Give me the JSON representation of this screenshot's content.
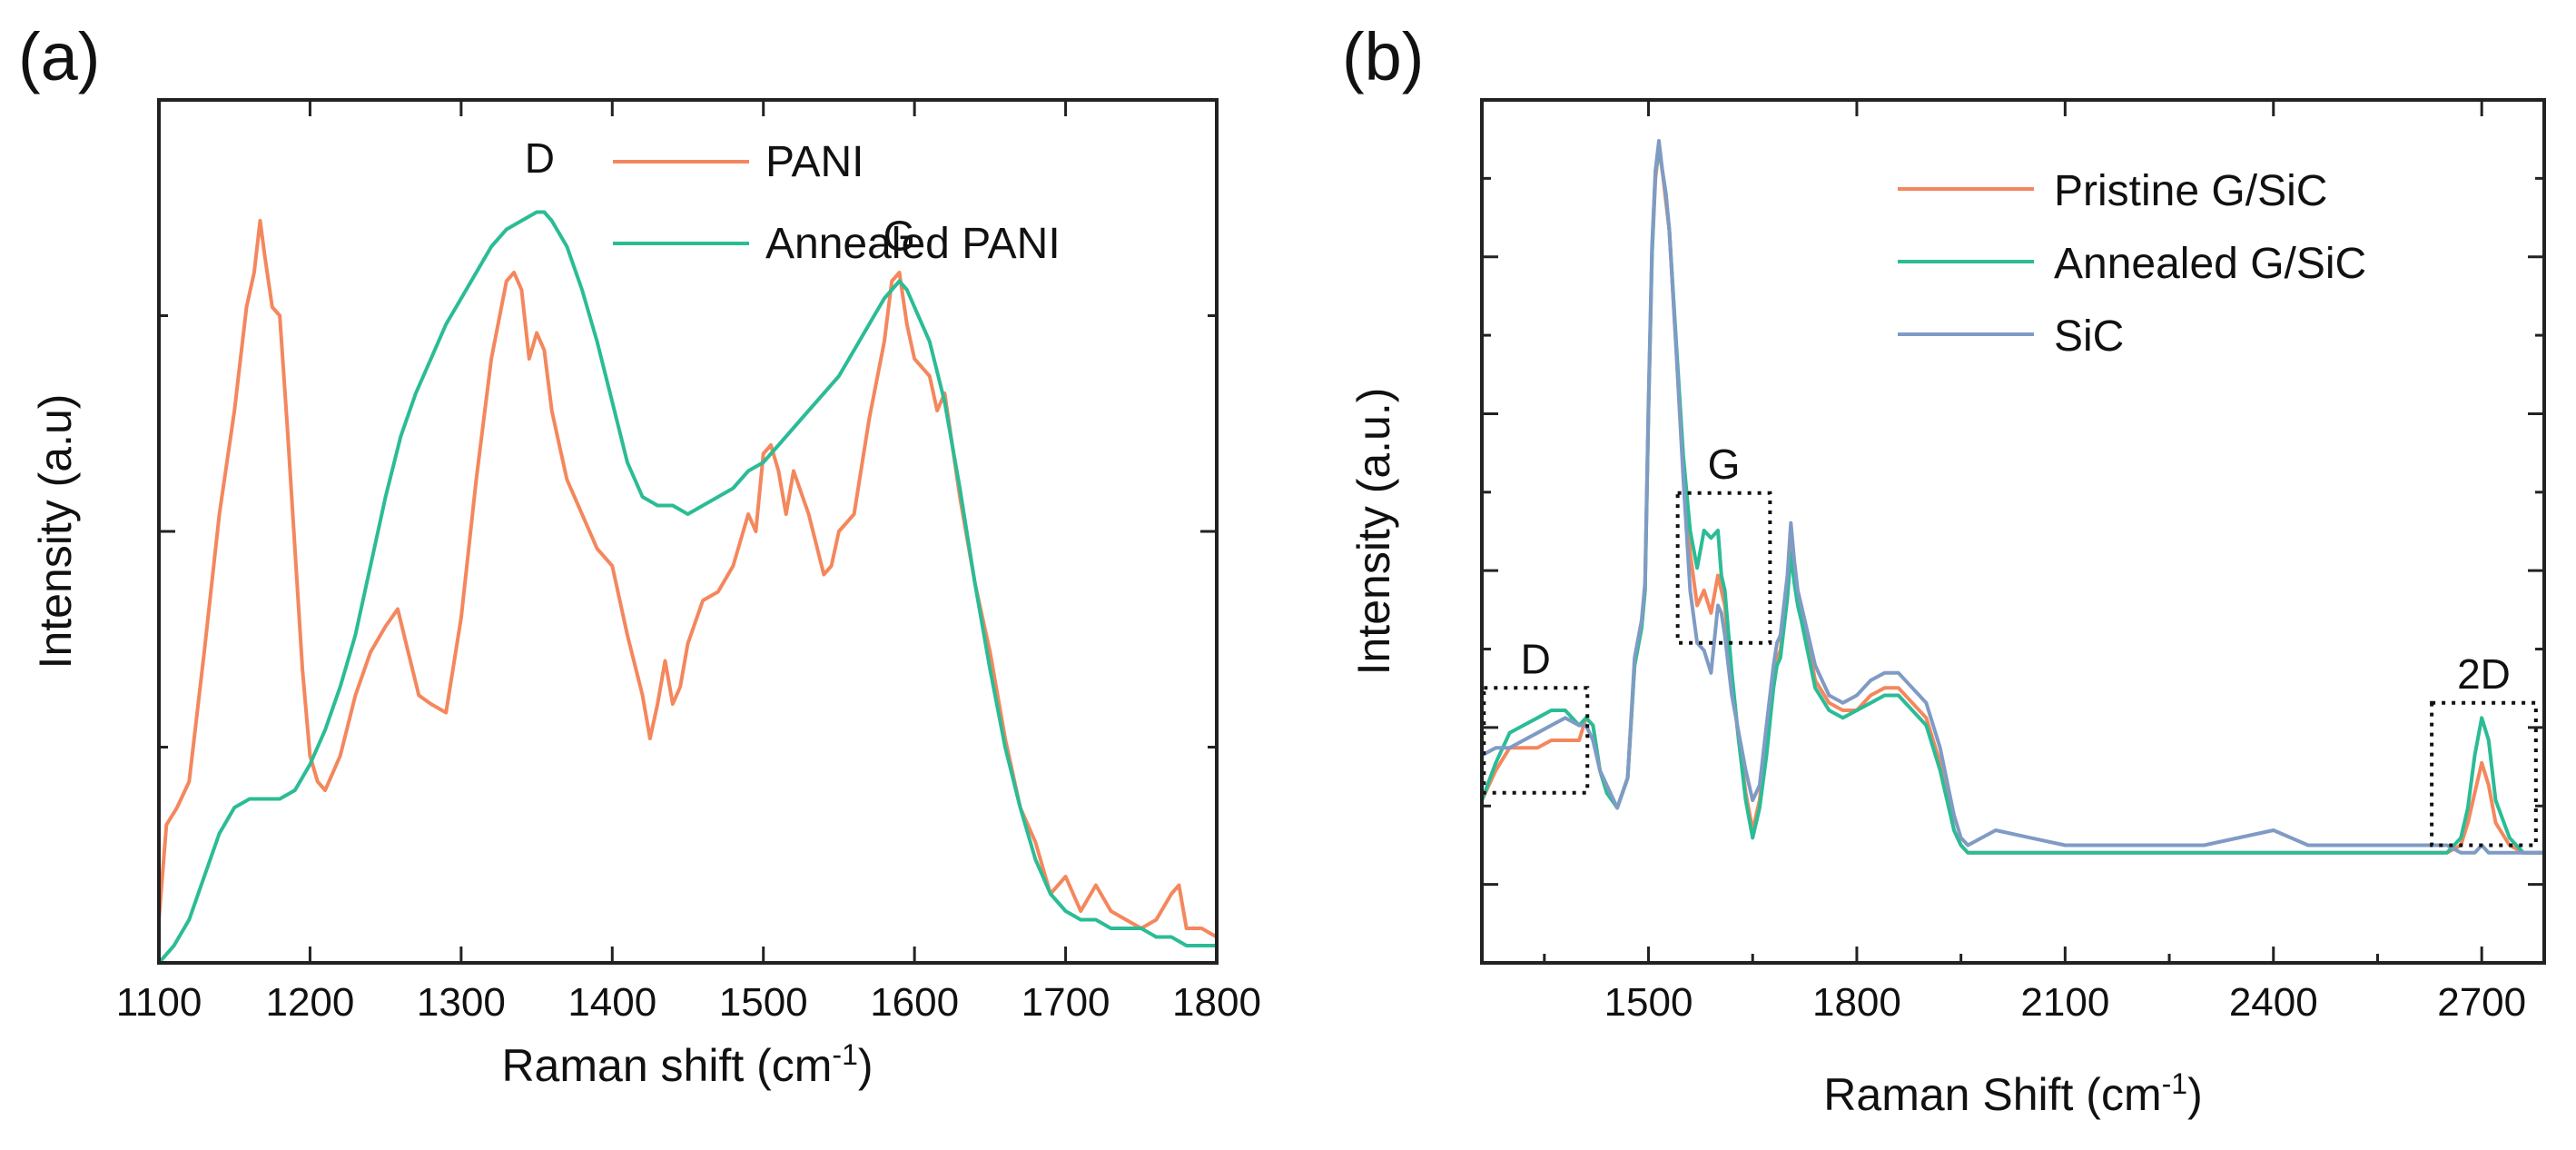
{
  "chart_data": [
    {
      "type": "line",
      "panel_label": "(a)",
      "xlabel": "Raman shift (cm",
      "xlabel_sup": "-1",
      "xlabel_close": ")",
      "ylabel": "Intensity (a.u)",
      "xlim": [
        1100,
        1800
      ],
      "ylim": [
        0,
        1
      ],
      "x_ticks": [
        "1100",
        "1200",
        "1300",
        "1400",
        "1500",
        "1600",
        "1700",
        "1800"
      ],
      "x_tick_values": [
        1100,
        1200,
        1300,
        1400,
        1500,
        1600,
        1700,
        1800
      ],
      "legend_position": "top-right",
      "annotations": [
        {
          "text": "D",
          "x": 1352,
          "y": 0.9
        },
        {
          "text": "G",
          "x": 1590,
          "y": 0.81
        }
      ],
      "series": [
        {
          "name": "PANI",
          "color": "#F4875D",
          "x": [
            1100,
            1105,
            1112,
            1120,
            1130,
            1140,
            1150,
            1158,
            1163,
            1167,
            1170,
            1175,
            1180,
            1185,
            1190,
            1195,
            1200,
            1205,
            1210,
            1220,
            1230,
            1240,
            1250,
            1258,
            1265,
            1272,
            1280,
            1290,
            1300,
            1310,
            1320,
            1330,
            1335,
            1340,
            1345,
            1350,
            1355,
            1360,
            1365,
            1370,
            1380,
            1390,
            1400,
            1410,
            1420,
            1425,
            1430,
            1435,
            1440,
            1445,
            1450,
            1460,
            1470,
            1480,
            1490,
            1495,
            1500,
            1505,
            1510,
            1515,
            1520,
            1530,
            1540,
            1545,
            1550,
            1560,
            1570,
            1580,
            1585,
            1590,
            1595,
            1600,
            1610,
            1615,
            1620,
            1630,
            1640,
            1650,
            1660,
            1670,
            1680,
            1690,
            1700,
            1710,
            1720,
            1730,
            1740,
            1750,
            1760,
            1770,
            1775,
            1780,
            1790,
            1800
          ],
          "y": [
            0.05,
            0.16,
            0.18,
            0.21,
            0.36,
            0.52,
            0.64,
            0.76,
            0.8,
            0.86,
            0.82,
            0.76,
            0.75,
            0.62,
            0.48,
            0.34,
            0.24,
            0.21,
            0.2,
            0.24,
            0.31,
            0.36,
            0.39,
            0.41,
            0.36,
            0.31,
            0.3,
            0.29,
            0.4,
            0.56,
            0.7,
            0.79,
            0.8,
            0.78,
            0.7,
            0.73,
            0.71,
            0.64,
            0.6,
            0.56,
            0.52,
            0.48,
            0.46,
            0.38,
            0.31,
            0.26,
            0.3,
            0.35,
            0.3,
            0.32,
            0.37,
            0.42,
            0.43,
            0.46,
            0.52,
            0.5,
            0.59,
            0.6,
            0.57,
            0.52,
            0.57,
            0.52,
            0.45,
            0.46,
            0.5,
            0.52,
            0.63,
            0.72,
            0.79,
            0.8,
            0.74,
            0.7,
            0.68,
            0.64,
            0.66,
            0.54,
            0.44,
            0.36,
            0.26,
            0.18,
            0.14,
            0.08,
            0.1,
            0.06,
            0.09,
            0.06,
            0.05,
            0.04,
            0.05,
            0.08,
            0.09,
            0.04,
            0.04,
            0.03
          ]
        },
        {
          "name": "Annealed PANI",
          "color": "#2BBC96",
          "x": [
            1100,
            1110,
            1120,
            1130,
            1140,
            1150,
            1160,
            1170,
            1180,
            1190,
            1200,
            1210,
            1220,
            1230,
            1240,
            1250,
            1260,
            1270,
            1280,
            1290,
            1300,
            1310,
            1320,
            1330,
            1340,
            1350,
            1355,
            1360,
            1370,
            1380,
            1390,
            1400,
            1410,
            1420,
            1430,
            1440,
            1450,
            1460,
            1470,
            1480,
            1490,
            1500,
            1510,
            1520,
            1530,
            1540,
            1550,
            1560,
            1570,
            1580,
            1585,
            1590,
            1595,
            1600,
            1610,
            1620,
            1630,
            1640,
            1650,
            1660,
            1670,
            1680,
            1690,
            1700,
            1710,
            1720,
            1730,
            1740,
            1750,
            1760,
            1770,
            1780,
            1790,
            1800
          ],
          "y": [
            0.0,
            0.02,
            0.05,
            0.1,
            0.15,
            0.18,
            0.19,
            0.19,
            0.19,
            0.2,
            0.23,
            0.27,
            0.32,
            0.38,
            0.46,
            0.54,
            0.61,
            0.66,
            0.7,
            0.74,
            0.77,
            0.8,
            0.83,
            0.85,
            0.86,
            0.87,
            0.87,
            0.86,
            0.83,
            0.78,
            0.72,
            0.65,
            0.58,
            0.54,
            0.53,
            0.53,
            0.52,
            0.53,
            0.54,
            0.55,
            0.57,
            0.58,
            0.6,
            0.62,
            0.64,
            0.66,
            0.68,
            0.71,
            0.74,
            0.77,
            0.78,
            0.79,
            0.78,
            0.76,
            0.72,
            0.65,
            0.55,
            0.44,
            0.34,
            0.25,
            0.18,
            0.12,
            0.08,
            0.06,
            0.05,
            0.05,
            0.04,
            0.04,
            0.04,
            0.03,
            0.03,
            0.02,
            0.02,
            0.02
          ]
        }
      ]
    },
    {
      "type": "line",
      "panel_label": "(b)",
      "xlabel": "Raman Shift (cm",
      "xlabel_sup": "-1",
      "xlabel_close": ")",
      "ylabel": "Intensity (a.u.)",
      "xlim": [
        1260,
        2790
      ],
      "ylim": [
        0,
        1
      ],
      "x_ticks": [
        "1500",
        "1800",
        "2100",
        "2400",
        "2700"
      ],
      "x_tick_values": [
        1500,
        1800,
        2100,
        2400,
        2700
      ],
      "legend_position": "top-right",
      "annotations": [
        {
          "text": "D",
          "x": 1340,
          "box_x": [
            1263,
            1412
          ],
          "box_y": [
            0.13,
            0.27
          ]
        },
        {
          "text": "G",
          "x": 1590,
          "box_x": [
            1542,
            1675
          ],
          "box_y": [
            0.33,
            0.53
          ]
        },
        {
          "text": "2D",
          "x": 2700,
          "box_x": [
            2628,
            2778
          ],
          "box_y": [
            0.06,
            0.25
          ]
        }
      ],
      "series": [
        {
          "name": "Pristine G/SiC",
          "color": "#F4875D",
          "x": [
            1260,
            1280,
            1300,
            1320,
            1340,
            1360,
            1380,
            1400,
            1410,
            1420,
            1430,
            1440,
            1455,
            1470,
            1480,
            1490,
            1495,
            1500,
            1505,
            1510,
            1515,
            1520,
            1525,
            1530,
            1540,
            1550,
            1560,
            1570,
            1580,
            1590,
            1600,
            1605,
            1610,
            1620,
            1630,
            1640,
            1650,
            1660,
            1670,
            1680,
            1685,
            1690,
            1700,
            1705,
            1710,
            1715,
            1720,
            1740,
            1760,
            1780,
            1800,
            1820,
            1840,
            1860,
            1880,
            1900,
            1920,
            1940,
            1950,
            1960,
            2000,
            2050,
            2100,
            2150,
            2200,
            2300,
            2400,
            2500,
            2600,
            2650,
            2670,
            2680,
            2690,
            2700,
            2710,
            2720,
            2740,
            2760,
            2790
          ],
          "y": [
            0.12,
            0.16,
            0.19,
            0.19,
            0.19,
            0.2,
            0.2,
            0.2,
            0.23,
            0.22,
            0.16,
            0.13,
            0.11,
            0.15,
            0.3,
            0.35,
            0.4,
            0.64,
            0.85,
            0.95,
            0.99,
            0.96,
            0.92,
            0.88,
            0.72,
            0.56,
            0.45,
            0.38,
            0.4,
            0.37,
            0.42,
            0.4,
            0.38,
            0.28,
            0.2,
            0.13,
            0.08,
            0.12,
            0.2,
            0.28,
            0.31,
            0.32,
            0.4,
            0.46,
            0.42,
            0.39,
            0.38,
            0.28,
            0.25,
            0.24,
            0.24,
            0.26,
            0.27,
            0.27,
            0.25,
            0.23,
            0.17,
            0.08,
            0.06,
            0.05,
            0.05,
            0.05,
            0.05,
            0.05,
            0.05,
            0.05,
            0.05,
            0.05,
            0.05,
            0.05,
            0.06,
            0.09,
            0.13,
            0.17,
            0.14,
            0.09,
            0.06,
            0.05,
            0.05
          ]
        },
        {
          "name": "Annealed G/SiC",
          "color": "#2BBC96",
          "x": [
            1260,
            1280,
            1300,
            1320,
            1340,
            1360,
            1380,
            1400,
            1410,
            1420,
            1430,
            1440,
            1455,
            1470,
            1480,
            1490,
            1495,
            1500,
            1505,
            1510,
            1515,
            1520,
            1525,
            1530,
            1540,
            1550,
            1560,
            1570,
            1580,
            1590,
            1600,
            1605,
            1610,
            1620,
            1630,
            1640,
            1650,
            1660,
            1670,
            1680,
            1685,
            1690,
            1700,
            1705,
            1710,
            1715,
            1720,
            1740,
            1760,
            1780,
            1800,
            1820,
            1840,
            1860,
            1880,
            1900,
            1920,
            1940,
            1950,
            1960,
            2000,
            2050,
            2100,
            2150,
            2200,
            2300,
            2400,
            2500,
            2600,
            2650,
            2670,
            2680,
            2690,
            2700,
            2710,
            2720,
            2740,
            2760,
            2790
          ],
          "y": [
            0.12,
            0.17,
            0.21,
            0.22,
            0.23,
            0.24,
            0.24,
            0.22,
            0.23,
            0.22,
            0.16,
            0.13,
            0.11,
            0.15,
            0.3,
            0.35,
            0.4,
            0.64,
            0.85,
            0.96,
            0.99,
            0.96,
            0.93,
            0.88,
            0.73,
            0.58,
            0.48,
            0.43,
            0.48,
            0.47,
            0.48,
            0.42,
            0.4,
            0.29,
            0.2,
            0.12,
            0.07,
            0.11,
            0.18,
            0.27,
            0.3,
            0.31,
            0.39,
            0.45,
            0.41,
            0.38,
            0.36,
            0.27,
            0.24,
            0.23,
            0.24,
            0.25,
            0.26,
            0.26,
            0.24,
            0.22,
            0.16,
            0.08,
            0.06,
            0.05,
            0.05,
            0.05,
            0.05,
            0.05,
            0.05,
            0.05,
            0.05,
            0.05,
            0.05,
            0.05,
            0.07,
            0.11,
            0.18,
            0.23,
            0.2,
            0.12,
            0.07,
            0.05,
            0.05
          ]
        },
        {
          "name": "SiC",
          "color": "#7F9BC5",
          "x": [
            1260,
            1280,
            1300,
            1320,
            1340,
            1360,
            1380,
            1400,
            1410,
            1420,
            1430,
            1440,
            1455,
            1470,
            1480,
            1490,
            1495,
            1500,
            1505,
            1510,
            1515,
            1520,
            1525,
            1530,
            1540,
            1550,
            1560,
            1570,
            1580,
            1590,
            1600,
            1605,
            1610,
            1620,
            1630,
            1640,
            1650,
            1660,
            1670,
            1680,
            1685,
            1690,
            1700,
            1705,
            1710,
            1715,
            1720,
            1740,
            1760,
            1780,
            1800,
            1820,
            1840,
            1860,
            1880,
            1900,
            1920,
            1940,
            1950,
            1960,
            2000,
            2050,
            2100,
            2150,
            2200,
            2300,
            2400,
            2450,
            2500,
            2600,
            2650,
            2670,
            2680,
            2690,
            2700,
            2710,
            2720,
            2740,
            2760,
            2790
          ],
          "y": [
            0.18,
            0.19,
            0.19,
            0.2,
            0.21,
            0.22,
            0.23,
            0.22,
            0.22,
            0.2,
            0.16,
            0.14,
            0.11,
            0.15,
            0.31,
            0.36,
            0.41,
            0.65,
            0.86,
            0.96,
            1.0,
            0.96,
            0.93,
            0.88,
            0.72,
            0.55,
            0.4,
            0.33,
            0.32,
            0.29,
            0.38,
            0.37,
            0.34,
            0.26,
            0.21,
            0.16,
            0.12,
            0.14,
            0.22,
            0.3,
            0.33,
            0.34,
            0.42,
            0.49,
            0.44,
            0.4,
            0.38,
            0.3,
            0.26,
            0.25,
            0.26,
            0.28,
            0.29,
            0.29,
            0.27,
            0.25,
            0.19,
            0.1,
            0.07,
            0.06,
            0.08,
            0.07,
            0.06,
            0.06,
            0.06,
            0.06,
            0.08,
            0.06,
            0.06,
            0.06,
            0.06,
            0.05,
            0.05,
            0.05,
            0.06,
            0.05,
            0.05,
            0.05,
            0.05,
            0.05
          ]
        }
      ]
    }
  ]
}
